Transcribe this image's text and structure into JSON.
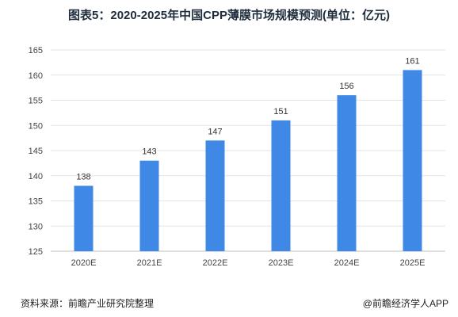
{
  "header": {
    "title": "图表5：2020-2025年中国CPP薄膜市场规模预测(单位：亿元)"
  },
  "footer": {
    "source": "资料来源：前瞻产业研究院整理",
    "brand": "@前瞻经济学人APP"
  },
  "chart_data": {
    "type": "bar",
    "categories": [
      "2020E",
      "2021E",
      "2022E",
      "2023E",
      "2024E",
      "2025E"
    ],
    "values": [
      138,
      143,
      147,
      151,
      156,
      161
    ],
    "ylim": [
      125,
      165
    ],
    "yticks": [
      125,
      130,
      135,
      140,
      145,
      150,
      155,
      160,
      165
    ],
    "grid": true,
    "colors": {
      "bar": "#3f88e6",
      "grid": "#e3e3e3",
      "axis": "#bfbfbf"
    }
  }
}
